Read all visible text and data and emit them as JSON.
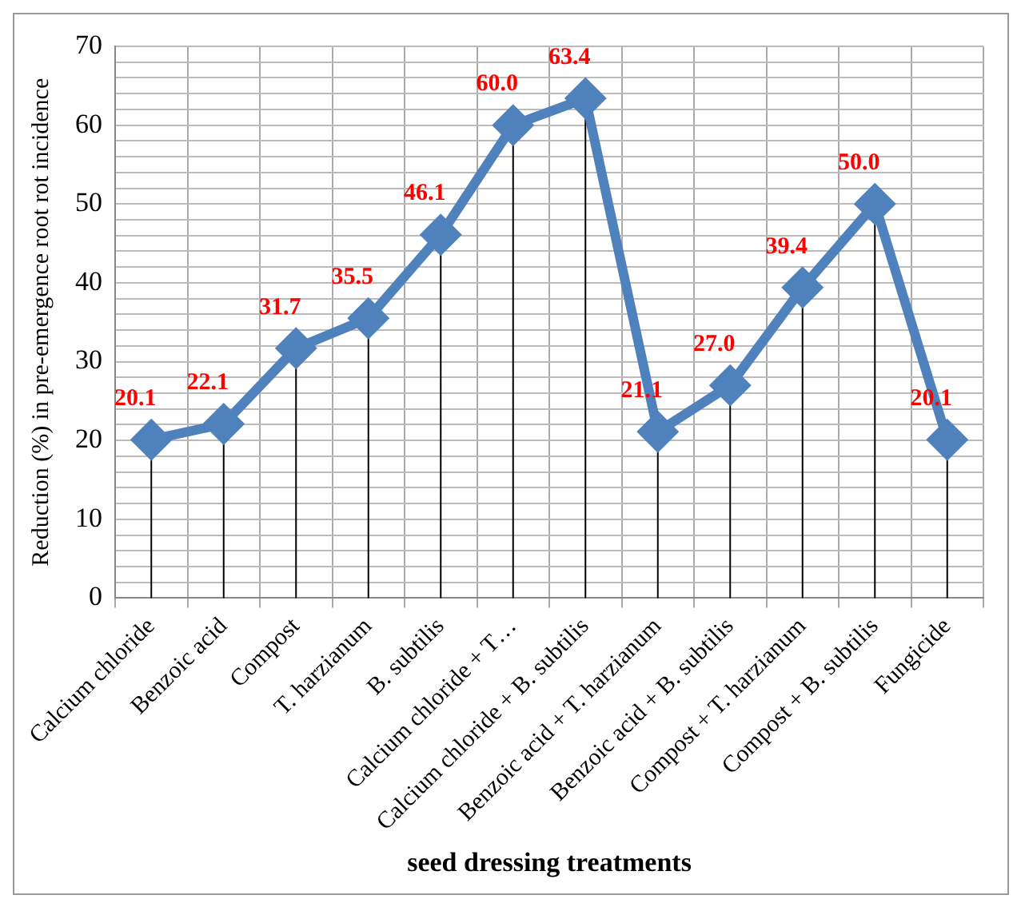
{
  "chart_data": {
    "type": "line",
    "xlabel": "seed dressing treatments",
    "ylabel": "Reduction (%) in pre-emergence root rot incidence",
    "categories": [
      "Calcium chloride",
      "Benzoic acid",
      "Compost",
      "T. harzianum",
      "B. subtilis",
      "Calcium chloride + T…",
      "Calcium chloride + B. subtilis",
      "Benzoic acid + T. harzianum",
      "Benzoic acid + B. subtilis",
      "Compost + T. harzianum",
      "Compost + B. subtilis",
      "Fungicide"
    ],
    "series": [
      {
        "color": "#4f81bd",
        "values": [
          20.1,
          22.1,
          31.7,
          35.5,
          46.1,
          60.0,
          63.4,
          21.1,
          27.0,
          39.4,
          50.0,
          20.1
        ],
        "value_labels": [
          "20.1",
          "22.1",
          "31.7",
          "35.5",
          "46.1",
          "60.0",
          "63.4",
          "21.1",
          "27.0",
          "39.4",
          "50.0",
          "20.1"
        ]
      }
    ],
    "ylim": [
      0,
      70
    ],
    "yticks": [
      0,
      {
        "value": 2,
        "label": null
      },
      {
        "value": 4,
        "label": null
      },
      {
        "value": 6,
        "label": null
      },
      {
        "value": 8,
        "label": null
      },
      10,
      {
        "value": 12,
        "label": null
      },
      {
        "value": 14,
        "label": null
      },
      {
        "value": 16,
        "label": null
      },
      {
        "value": 18,
        "label": null
      },
      20,
      {
        "value": 22,
        "label": null
      },
      {
        "value": 24,
        "label": null
      },
      {
        "value": 26,
        "label": null
      },
      {
        "value": 28,
        "label": null
      },
      30,
      {
        "value": 32,
        "label": null
      },
      {
        "value": 34,
        "label": null
      },
      {
        "value": 36,
        "label": null
      },
      {
        "value": 38,
        "label": null
      },
      40,
      {
        "value": 42,
        "label": null
      },
      {
        "value": 44,
        "label": null
      },
      {
        "value": 46,
        "label": null
      },
      {
        "value": 48,
        "label": null
      },
      50,
      {
        "value": 52,
        "label": null
      },
      {
        "value": 54,
        "label": null
      },
      {
        "value": 56,
        "label": null
      },
      {
        "value": 58,
        "label": null
      },
      60,
      {
        "value": 62,
        "label": null
      },
      {
        "value": 64,
        "label": null
      },
      {
        "value": 66,
        "label": null
      },
      {
        "value": 68,
        "label": null
      },
      70
    ],
    "grid": true,
    "legend": false,
    "marker": "diamond",
    "line_style": "solid"
  }
}
